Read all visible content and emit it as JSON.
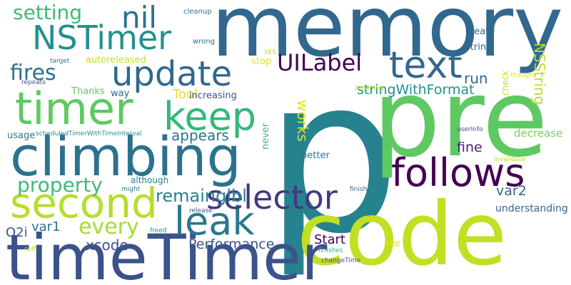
{
  "palette": {
    "dark_purple": "#440154",
    "indigo": "#3b528b",
    "blue": "#31688e",
    "teal": "#21918c",
    "green": "#35b779",
    "light_green": "#5ec962",
    "yellow_green": "#b5de2b",
    "lime": "#c2df23",
    "yellow": "#e0e31f"
  },
  "words": [
    {
      "text": "p",
      "color": "#26828e"
    },
    {
      "text": "memory",
      "color": "#31688e"
    },
    {
      "text": "pre",
      "color": "#5ec962"
    },
    {
      "text": "code",
      "color": "#c2df23"
    },
    {
      "text": "timeTimer",
      "color": "#3b528b"
    },
    {
      "text": "climbing",
      "color": "#2c728e"
    },
    {
      "text": "timer",
      "color": "#5ec962"
    },
    {
      "text": "follows",
      "color": "#440154"
    },
    {
      "text": "update",
      "color": "#31688e"
    },
    {
      "text": "text",
      "color": "#31688e"
    },
    {
      "text": "keep",
      "color": "#35b779"
    },
    {
      "text": "second",
      "color": "#b5de2b"
    },
    {
      "text": "NSTimer",
      "color": "#21918c"
    },
    {
      "text": "leak",
      "color": "#2a788e"
    },
    {
      "text": "selector",
      "color": "#443983"
    },
    {
      "text": "nil",
      "color": "#2c728e"
    },
    {
      "text": "setting",
      "color": "#3dbc74"
    },
    {
      "text": "fires",
      "color": "#2c728e"
    },
    {
      "text": "UILabel",
      "color": "#440154"
    },
    {
      "text": "property",
      "color": "#3dbc74"
    },
    {
      "text": "every",
      "color": "#a8db34"
    },
    {
      "text": "remainglbl",
      "color": "#26828e"
    },
    {
      "text": "stringWithFormat",
      "color": "#21918c"
    },
    {
      "text": "NSString",
      "color": "#b5de2b"
    },
    {
      "text": "appears",
      "color": "#2c728e"
    },
    {
      "text": "Performance",
      "color": "#3b528b"
    },
    {
      "text": "Start",
      "color": "#440154"
    },
    {
      "text": "run",
      "color": "#31688e"
    },
    {
      "text": "fine",
      "color": "#482475"
    },
    {
      "text": "var2",
      "color": "#31688e"
    },
    {
      "text": "works",
      "color": "#e0e31f"
    },
    {
      "text": "xcode",
      "color": "#3b528b"
    },
    {
      "text": "var1",
      "color": "#2c728e"
    },
    {
      "text": "O2i",
      "color": "#3b528b"
    },
    {
      "text": "Tool",
      "color": "#e0e31f"
    },
    {
      "text": "decrease",
      "color": "#7ad151"
    },
    {
      "text": "increasing",
      "color": "#3b528b"
    },
    {
      "text": "understanding",
      "color": "#31688e"
    },
    {
      "text": "autoreleased",
      "color": "#c2df23"
    },
    {
      "text": "Thanks",
      "color": "#5ec962"
    },
    {
      "text": "way",
      "color": "#31688e"
    },
    {
      "text": "usage",
      "color": "#2c728e"
    },
    {
      "text": "create",
      "color": "#31688e"
    },
    {
      "text": "string",
      "color": "#31688e"
    },
    {
      "text": "stop",
      "color": "#e0e31f"
    },
    {
      "text": "better",
      "color": "#2c728e"
    },
    {
      "text": "never",
      "color": "#3dbc74"
    },
    {
      "text": "although",
      "color": "#26828e"
    },
    {
      "text": "check",
      "color": "#c2df23"
    },
    {
      "text": "see",
      "color": "#e0e31f"
    },
    {
      "text": "cleanup",
      "color": "#2c728e"
    },
    {
      "text": "wrong",
      "color": "#2c728e"
    },
    {
      "text": "target",
      "color": "#2c728e"
    },
    {
      "text": "repeats",
      "color": "#3b528b"
    },
    {
      "text": "YES",
      "color": "#b5de2b"
    },
    {
      "text": "thought",
      "color": "#e0e31f"
    },
    {
      "text": "Anything",
      "color": "#b5de2b"
    },
    {
      "text": "scheduledTimerWithTimeInterval",
      "color": "#21918c"
    },
    {
      "text": "userInfo",
      "color": "#3b528b"
    },
    {
      "text": "invalidate",
      "color": "#b5de2b"
    },
    {
      "text": "might",
      "color": "#2c728e"
    },
    {
      "text": "finish",
      "color": "#31688e"
    },
    {
      "text": "release",
      "color": "#3b528b"
    },
    {
      "text": "freed",
      "color": "#21918c"
    },
    {
      "text": "self",
      "color": "#b5de2b"
    },
    {
      "text": "finishes",
      "color": "#35b779"
    },
    {
      "text": "changeTime",
      "color": "#3b528b"
    }
  ]
}
